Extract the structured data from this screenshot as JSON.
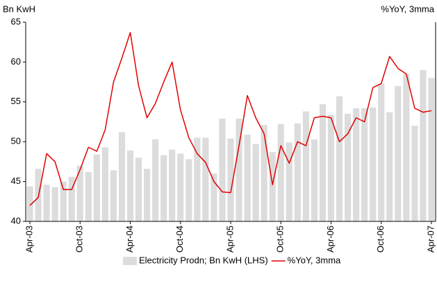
{
  "chart_data": {
    "type": "combo",
    "y_label": "Bn KwH",
    "y2_label": "%YoY, 3mma",
    "categories": [
      "Apr-03",
      null,
      null,
      null,
      null,
      null,
      "Oct-03",
      null,
      null,
      null,
      null,
      null,
      "Apr-04",
      null,
      null,
      null,
      null,
      null,
      "Oct-04",
      null,
      null,
      null,
      null,
      null,
      "Apr-05",
      null,
      null,
      null,
      null,
      null,
      "Oct-05",
      null,
      null,
      null,
      null,
      null,
      "Apr-06",
      null,
      null,
      null,
      null,
      null,
      "Oct-06",
      null,
      null,
      null,
      null,
      null,
      "Apr-07"
    ],
    "series": [
      {
        "name": "Electricity Prodn; Bn KwH (LHS)",
        "type": "bar",
        "color": "#dcdcdc",
        "values": [
          44.4,
          46.6,
          44.6,
          44.3,
          45.0,
          45.6,
          47.0,
          46.2,
          48.4,
          49.3,
          46.4,
          51.2,
          48.9,
          48.0,
          46.6,
          50.3,
          48.3,
          49.0,
          48.5,
          47.8,
          50.5,
          50.5,
          46.0,
          52.9,
          50.4,
          52.9,
          50.9,
          49.7,
          52.1,
          48.7,
          52.2,
          49.9,
          52.3,
          53.8,
          50.3,
          54.7,
          53.4,
          55.7,
          53.5,
          54.2,
          54.2,
          54.3,
          57.3,
          53.7,
          57.0,
          58.5,
          52.0,
          59.0,
          58.0
        ]
      },
      {
        "name": "%YoY, 3mma",
        "type": "line",
        "color": "#e00000",
        "values": [
          42.0,
          43.0,
          48.5,
          47.5,
          44.0,
          44.0,
          46.5,
          49.3,
          48.8,
          51.5,
          57.5,
          60.5,
          63.7,
          57.0,
          53.0,
          54.8,
          57.5,
          60.0,
          54.0,
          50.5,
          48.5,
          47.4,
          45.0,
          43.7,
          43.6,
          49.5,
          55.8,
          53.0,
          51.0,
          44.6,
          49.5,
          47.3,
          50.0,
          49.5,
          53.0,
          53.2,
          53.0,
          50.0,
          51.0,
          53.0,
          52.5,
          56.8,
          57.3,
          60.7,
          59.2,
          58.5,
          54.2,
          53.7,
          53.9
        ]
      }
    ],
    "ylim": [
      40,
      65
    ],
    "yticks": [
      40,
      45,
      50,
      55,
      60,
      65
    ],
    "grid": false
  }
}
